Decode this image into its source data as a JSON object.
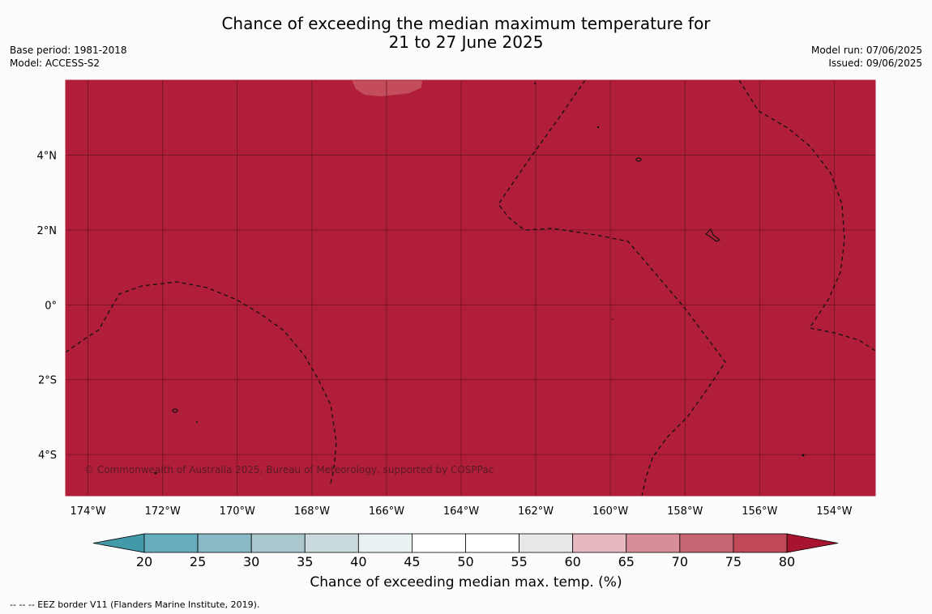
{
  "title": {
    "line1": "Chance of exceeding the median maximum temperature for",
    "line2": "21 to 27 June 2025"
  },
  "meta_left": {
    "base_period": "Base period: 1981-2018",
    "model": "Model: ACCESS-S2"
  },
  "meta_right": {
    "model_run": "Model run: 07/06/2025",
    "issued": "Issued: 09/06/2025"
  },
  "map": {
    "lat_labels": [
      "4°N",
      "2°N",
      "0°",
      "2°S",
      "4°S"
    ],
    "lat_values": [
      4,
      2,
      0,
      -2,
      -4
    ],
    "lon_labels": [
      "174°W",
      "172°W",
      "170°W",
      "168°W",
      "166°W",
      "164°W",
      "162°W",
      "160°W",
      "158°W",
      "156°W",
      "154°W"
    ],
    "lon_values": [
      -174,
      -172,
      -170,
      -168,
      -166,
      -164,
      -162,
      -160,
      -158,
      -156,
      -154
    ],
    "lon_range": [
      -174.6,
      -152.9
    ],
    "lat_range": [
      -5.1,
      6.0
    ],
    "fill_color": "#b11e39",
    "patch_color": "#c34d5a",
    "grid": true,
    "copyright": "© Commonwealth of Australia 2025, Bureau of Meteorology, supported by COSPPac"
  },
  "colorbar": {
    "title": "Chance of exceeding median max. temp. (%)",
    "ticks": [
      "20",
      "25",
      "30",
      "35",
      "40",
      "45",
      "50",
      "55",
      "60",
      "65",
      "70",
      "75",
      "80"
    ],
    "colors": [
      "#65adbd",
      "#89b9c5",
      "#a9c7cd",
      "#cbdadd",
      "#e9f2f3",
      "#ffffff",
      "#ffffff",
      "#e8e8e8",
      "#e6b8bf",
      "#d78e98",
      "#c76672",
      "#c04957"
    ],
    "under_color": "#4299a8",
    "over_color": "#a8142f"
  },
  "footnote": "--  --  -- EEZ border V11 (Flanders Marine Institute, 2019)."
}
